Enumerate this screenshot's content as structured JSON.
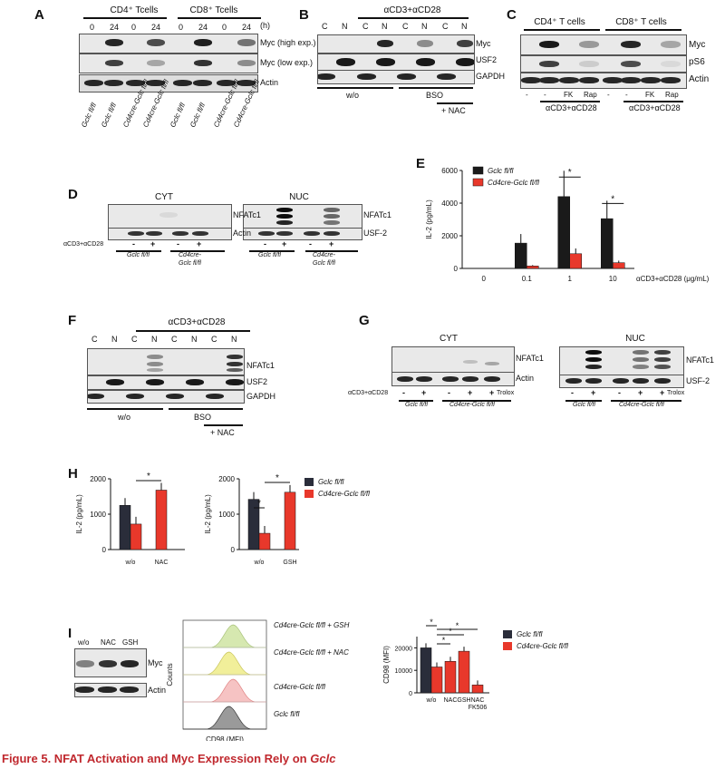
{
  "panelA": {
    "label": "A",
    "group1": "CD4⁺ Tcells",
    "group2": "CD8⁺ Tcells",
    "time_unit": "(h)",
    "times": [
      "0",
      "24",
      "0",
      "24",
      "0",
      "24",
      "0",
      "24"
    ],
    "rows": [
      "Myc (high exp.)",
      "Myc (low exp.)",
      "Actin"
    ],
    "genotypes": [
      "Gclc fl/fl",
      "Gclc fl/fl",
      "Cd4cre-Gclc fl/fl",
      "Cd4cre-Gclc fl/fl",
      "Gclc fl/fl",
      "Gclc fl/fl",
      "Cd4cre-Gclc fl/fl",
      "Cd4cre-Gclc fl/fl"
    ]
  },
  "panelB": {
    "label": "B",
    "top": "αCD3+αCD28",
    "lanes": [
      "C",
      "N",
      "C",
      "N",
      "C",
      "N",
      "C",
      "N"
    ],
    "rows": [
      "Myc",
      "USF2",
      "GAPDH"
    ],
    "cond1": "w/o",
    "cond2": "BSO",
    "cond3": "+ NAC"
  },
  "panelC": {
    "label": "C",
    "group1": "CD4⁺ T cells",
    "group2": "CD8⁺ T cells",
    "rows": [
      "Myc",
      "pS6",
      "Actin"
    ],
    "lanes": [
      "-",
      "-",
      "FK",
      "Rap",
      "-",
      "-",
      "FK",
      "Rap"
    ],
    "stim": "αCD3+αCD28"
  },
  "panelD": {
    "label": "D",
    "cyt": "CYT",
    "nuc": "NUC",
    "rows_cyt": [
      "NFATc1",
      "Actin"
    ],
    "rows_nuc": [
      "NFATc1",
      "USF-2"
    ],
    "stim": "αCD3+αCD28",
    "signs": [
      "-",
      "+",
      "-",
      "+"
    ],
    "g1": "Gclc fl/fl",
    "g2a": "Cd4cre-",
    "g2b": "Gclc fl/fl"
  },
  "panelE": {
    "label": "E",
    "xlabel": "αCD3+αCD28 (μg/mL)",
    "ylabel": "IL-2 (pg/mL)",
    "legend": [
      "Gclc fl/fl",
      "Cd4cre-Gclc fl/fl"
    ],
    "star": "*"
  },
  "panelF": {
    "label": "F",
    "top": "αCD3+αCD28",
    "lanes": [
      "C",
      "N",
      "C",
      "N",
      "C",
      "N",
      "C",
      "N"
    ],
    "rows": [
      "NFATc1",
      "USF2",
      "GAPDH"
    ],
    "cond1": "w/o",
    "cond2": "BSO",
    "cond3": "+ NAC"
  },
  "panelG": {
    "label": "G",
    "cyt": "CYT",
    "nuc": "NUC",
    "rows_cyt": [
      "NFATc1",
      "Actin"
    ],
    "rows_nuc": [
      "NFATc1",
      "USF-2"
    ],
    "stim": "αCD3+αCD28",
    "signs": [
      "-",
      "+",
      "-",
      "+",
      "+"
    ],
    "trolox": "Trolox",
    "g1": "Gclc fl/fl",
    "g2": "Cd4cre-Gclc fl/fl"
  },
  "panelH": {
    "label": "H",
    "ylabel": "IL-2 (pg/mL)",
    "legend": [
      "Gclc fl/fl",
      "Cd4cre-Gclc fl/fl"
    ],
    "x1": [
      "w/o",
      "NAC"
    ],
    "x2": [
      "w/o",
      "GSH"
    ],
    "star": "*"
  },
  "panelI": {
    "label": "I",
    "lanes": [
      "w/o",
      "NAC",
      "GSH"
    ],
    "rows": [
      "Myc",
      "Actin"
    ],
    "counts": "Counts",
    "cd98": "CD98 (MFI)",
    "hist_labels": [
      "Cd4cre-Gclc fl/fl + GSH",
      "Cd4cre-Gclc fl/fl + NAC",
      "Cd4cre-Gclc fl/fl",
      "Gclc fl/fl"
    ],
    "ylabel": "CD98 (MFI)",
    "xcats": [
      "w/o",
      "NAC",
      "GSH",
      "NAC FK506"
    ],
    "legend": [
      "Gclc fl/fl",
      "Cd4cre-Gclc fl/fl"
    ],
    "star": "*"
  },
  "caption": {
    "prefix": "Figure 5.  NFAT Activation and Myc Expression Rely on ",
    "gene": "Gclc"
  },
  "chart_data": [
    {
      "type": "bar",
      "title": "",
      "xlabel": "αCD3+αCD28 (μg/mL)",
      "ylabel": "IL-2 (pg/mL)",
      "categories": [
        "0",
        "0.1",
        "1",
        "10"
      ],
      "ylim": [
        0,
        6000
      ],
      "series": [
        {
          "name": "Gclc fl/fl",
          "values": [
            0,
            1550,
            4400,
            3050
          ],
          "color": "#1a1a1a"
        },
        {
          "name": "Cd4cre-Gclc fl/fl",
          "values": [
            0,
            150,
            900,
            350
          ],
          "color": "#e8382b"
        }
      ]
    },
    {
      "type": "bar",
      "title": "",
      "xlabel": "",
      "ylabel": "IL-2 (pg/mL)",
      "categories": [
        "w/o",
        "NAC"
      ],
      "ylim": [
        0,
        2000
      ],
      "series": [
        {
          "name": "Gclc fl/fl",
          "values": [
            1250,
            null
          ],
          "color": "#2a2d3a"
        },
        {
          "name": "Cd4cre-Gclc fl/fl",
          "values": [
            720,
            1680
          ],
          "color": "#e8382b"
        }
      ]
    },
    {
      "type": "bar",
      "title": "",
      "xlabel": "",
      "ylabel": "IL-2 (pg/mL)",
      "categories": [
        "w/o",
        "GSH"
      ],
      "ylim": [
        0,
        2000
      ],
      "series": [
        {
          "name": "Gclc fl/fl",
          "values": [
            1420,
            null
          ],
          "color": "#2a2d3a"
        },
        {
          "name": "Cd4cre-Gclc fl/fl",
          "values": [
            460,
            1620
          ],
          "color": "#e8382b"
        }
      ]
    },
    {
      "type": "bar",
      "title": "",
      "xlabel": "",
      "ylabel": "CD98 (MFI)",
      "categories": [
        "w/o",
        "NAC",
        "GSH",
        "NAC FK506"
      ],
      "ylim": [
        0,
        20000
      ],
      "series": [
        {
          "name": "Gclc fl/fl",
          "values": [
            20000,
            null,
            null,
            null
          ],
          "color": "#2a2d3a"
        },
        {
          "name": "Cd4cre-Gclc fl/fl",
          "values": [
            11500,
            14000,
            18500,
            3500
          ],
          "color": "#e8382b"
        }
      ]
    }
  ]
}
